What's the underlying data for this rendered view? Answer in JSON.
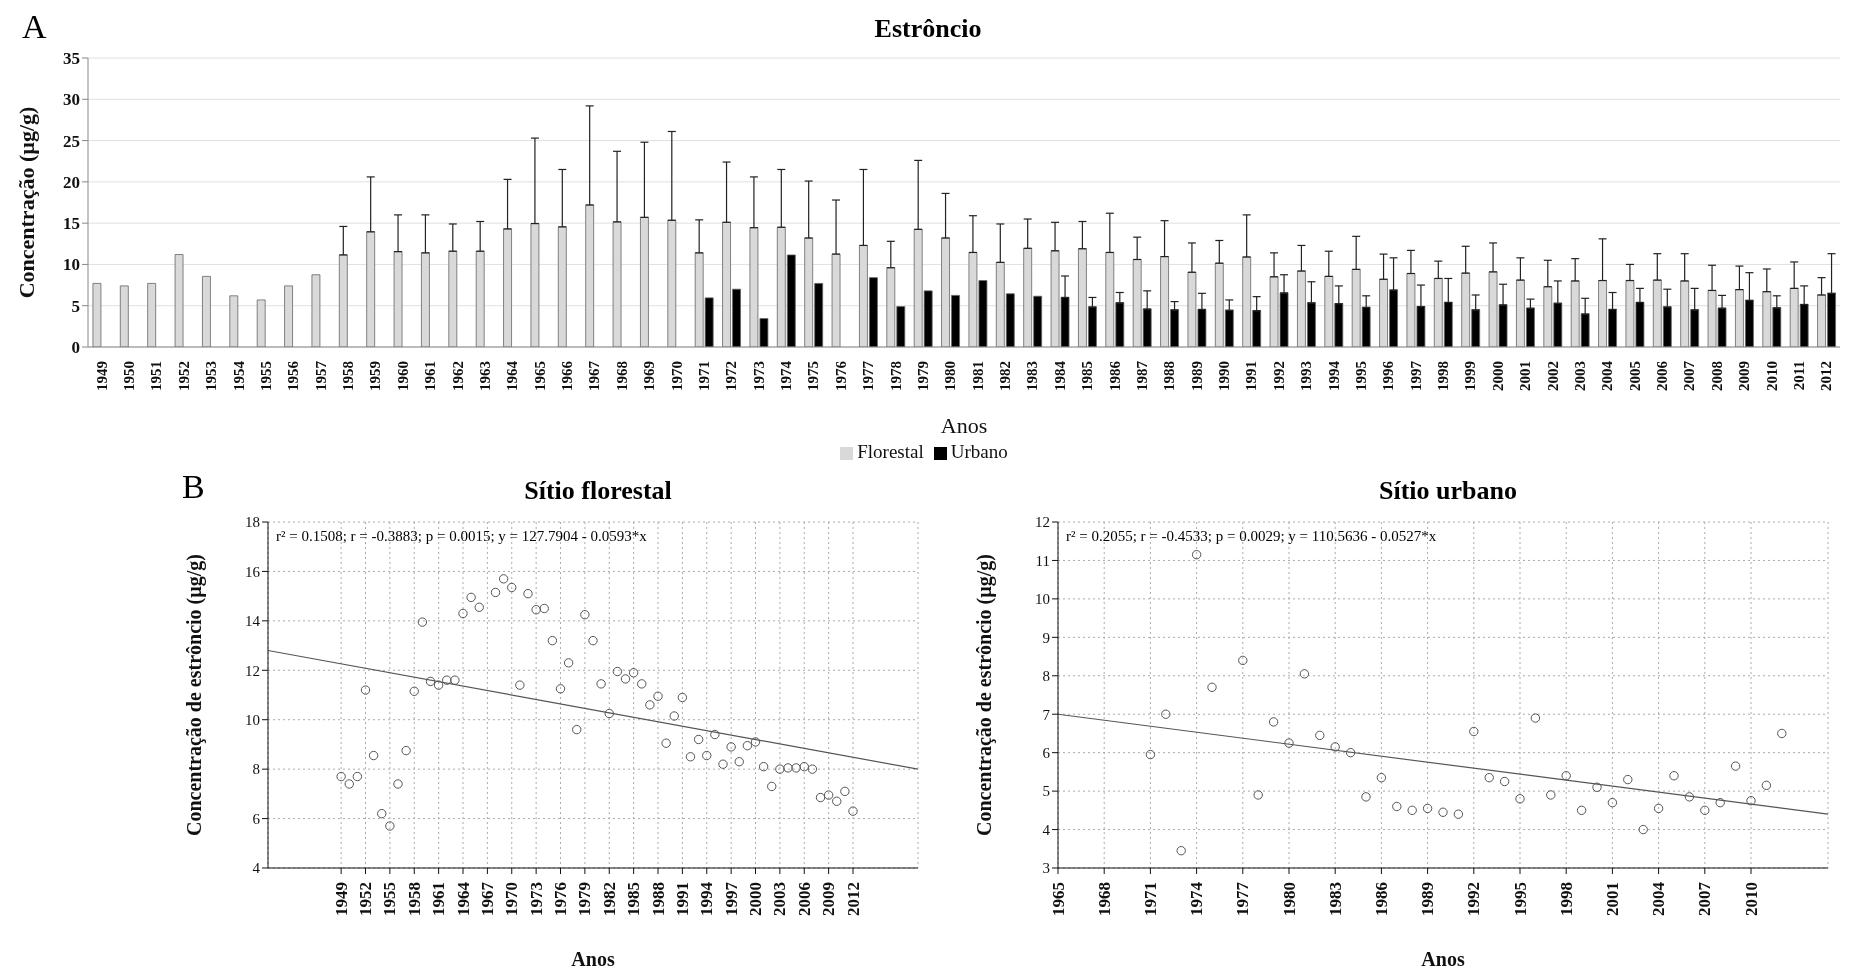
{
  "chart_data": [
    {
      "type": "bar",
      "title": "Estrôncio",
      "xlabel": "Anos",
      "ylabel": "Concentração (µg/g)",
      "annotations": [
        "A"
      ],
      "categories": [
        "1949",
        "1950",
        "1951",
        "1952",
        "1953",
        "1954",
        "1955",
        "1956",
        "1957",
        "1958",
        "1959",
        "1960",
        "1961",
        "1962",
        "1963",
        "1964",
        "1965",
        "1966",
        "1967",
        "1968",
        "1969",
        "1970",
        "1971",
        "1972",
        "1973",
        "1974",
        "1975",
        "1976",
        "1977",
        "1978",
        "1979",
        "1980",
        "1981",
        "1982",
        "1983",
        "1984",
        "1985",
        "1986",
        "1987",
        "1988",
        "1989",
        "1990",
        "1991",
        "1992",
        "1993",
        "1994",
        "1995",
        "1996",
        "1997",
        "1998",
        "1999",
        "2000",
        "2001",
        "2002",
        "2003",
        "2004",
        "2005",
        "2006",
        "2007",
        "2008",
        "2009",
        "2010",
        "2011",
        "2012"
      ],
      "series": [
        {
          "name": "Florestal",
          "color": "#d9d9d9",
          "values": [
            7.7,
            7.4,
            7.7,
            11.2,
            8.55,
            6.2,
            5.7,
            7.4,
            8.75,
            11.15,
            13.95,
            11.55,
            11.4,
            11.6,
            11.6,
            14.3,
            14.95,
            14.55,
            17.2,
            15.15,
            15.7,
            15.35,
            11.4,
            15.1,
            14.45,
            14.5,
            13.2,
            11.25,
            12.3,
            9.6,
            14.25,
            13.2,
            11.45,
            10.25,
            11.95,
            11.65,
            11.9,
            11.45,
            10.6,
            10.95,
            9.05,
            10.15,
            10.9,
            8.5,
            9.2,
            8.55,
            9.4,
            8.2,
            8.9,
            8.3,
            8.95,
            9.1,
            8.1,
            7.3,
            8.0,
            8.05,
            8.05,
            8.1,
            8.0,
            6.85,
            6.95,
            6.7,
            7.1,
            6.3
          ],
          "errors": [
            null,
            null,
            null,
            null,
            null,
            null,
            null,
            null,
            null,
            [
              11.15,
              14.6
            ],
            [
              13.95,
              20.6
            ],
            [
              11.55,
              16.0
            ],
            [
              11.4,
              16.0
            ],
            [
              11.6,
              14.9
            ],
            [
              11.6,
              15.2
            ],
            [
              14.3,
              20.3
            ],
            [
              14.95,
              25.3
            ],
            [
              14.55,
              21.5
            ],
            [
              17.2,
              29.2
            ],
            [
              15.15,
              23.7
            ],
            [
              15.7,
              24.8
            ],
            [
              15.35,
              26.1
            ],
            [
              11.4,
              15.4
            ],
            [
              15.1,
              22.4
            ],
            [
              14.45,
              20.6
            ],
            [
              14.5,
              21.5
            ],
            [
              13.2,
              20.1
            ],
            [
              11.25,
              17.8
            ],
            [
              12.3,
              21.5
            ],
            [
              9.6,
              12.8
            ],
            [
              14.25,
              22.6
            ],
            [
              13.2,
              18.6
            ],
            [
              11.45,
              15.9
            ],
            [
              10.25,
              14.9
            ],
            [
              11.95,
              15.5
            ],
            [
              11.65,
              15.1
            ],
            [
              11.9,
              15.2
            ],
            [
              11.45,
              16.2
            ],
            [
              10.6,
              13.3
            ],
            [
              10.95,
              15.3
            ],
            [
              9.05,
              12.6
            ],
            [
              10.15,
              12.9
            ],
            [
              10.9,
              16.0
            ],
            [
              8.5,
              11.4
            ],
            [
              9.2,
              12.3
            ],
            [
              8.55,
              11.6
            ],
            [
              9.4,
              13.4
            ],
            [
              8.2,
              11.25
            ],
            [
              8.9,
              11.7
            ],
            [
              8.3,
              10.4
            ],
            [
              8.95,
              12.2
            ],
            [
              9.1,
              12.6
            ],
            [
              8.1,
              10.8
            ],
            [
              7.3,
              10.5
            ],
            [
              8.0,
              10.7
            ],
            [
              8.05,
              13.1
            ],
            [
              8.05,
              10.0
            ],
            [
              8.1,
              11.3
            ],
            [
              8.0,
              11.3
            ],
            [
              6.85,
              9.9
            ],
            [
              6.95,
              9.8
            ],
            [
              6.7,
              9.45
            ],
            [
              7.1,
              10.3
            ],
            [
              6.3,
              8.4
            ]
          ]
        },
        {
          "name": "Urbano",
          "color": "#000000",
          "values": [
            null,
            null,
            null,
            null,
            null,
            null,
            null,
            null,
            null,
            null,
            null,
            null,
            null,
            null,
            null,
            null,
            null,
            null,
            null,
            null,
            null,
            null,
            5.95,
            7.0,
            3.45,
            11.15,
            7.7,
            null,
            8.4,
            4.9,
            6.8,
            6.25,
            8.05,
            6.45,
            6.15,
            6.0,
            4.85,
            5.35,
            4.6,
            4.5,
            4.55,
            4.45,
            4.4,
            6.55,
            5.35,
            5.25,
            4.8,
            6.9,
            4.9,
            5.4,
            4.5,
            5.1,
            4.7,
            5.3,
            4.0,
            4.55,
            5.4,
            4.85,
            4.5,
            4.7,
            5.65,
            4.75,
            5.15,
            6.5
          ],
          "errors": [
            null,
            null,
            null,
            null,
            null,
            null,
            null,
            null,
            null,
            null,
            null,
            null,
            null,
            null,
            null,
            null,
            null,
            null,
            null,
            null,
            null,
            null,
            null,
            null,
            null,
            null,
            null,
            null,
            null,
            null,
            null,
            null,
            null,
            null,
            null,
            [
              6.0,
              8.6
            ],
            [
              4.85,
              6.0
            ],
            [
              5.35,
              6.6
            ],
            [
              4.6,
              6.8
            ],
            [
              4.5,
              5.5
            ],
            [
              4.55,
              6.5
            ],
            [
              4.45,
              5.7
            ],
            [
              4.4,
              6.1
            ],
            [
              6.55,
              8.75
            ],
            [
              5.35,
              7.9
            ],
            [
              5.25,
              7.4
            ],
            [
              4.8,
              6.2
            ],
            [
              6.9,
              10.8
            ],
            [
              4.9,
              7.5
            ],
            [
              5.4,
              8.3
            ],
            [
              4.5,
              6.3
            ],
            [
              5.1,
              7.6
            ],
            [
              4.7,
              5.8
            ],
            [
              5.3,
              8.0
            ],
            [
              4.0,
              5.9
            ],
            [
              4.55,
              6.6
            ],
            [
              5.4,
              7.1
            ],
            [
              4.85,
              7.0
            ],
            [
              4.5,
              7.1
            ],
            [
              4.7,
              6.25
            ],
            [
              5.65,
              9.0
            ],
            [
              4.75,
              6.2
            ],
            [
              5.15,
              7.4
            ],
            [
              6.5,
              11.3
            ]
          ]
        }
      ],
      "ylim": [
        0,
        35
      ],
      "yticks": [
        0,
        5,
        10,
        15,
        20,
        25,
        30,
        35
      ],
      "grid": "y",
      "legend": "bottom"
    },
    {
      "type": "scatter",
      "title": "Sítio florestal",
      "xlabel": "Anos",
      "ylabel": "Concentração de estrôncio (µg/g)",
      "annotations": [
        "B",
        "r² = 0.1508;  r = -0.3883; p = 0.0015;  y = 127.7904 - 0.0593*x"
      ],
      "series": [
        {
          "type": "scatter",
          "marker": "circle",
          "color": "#555555",
          "x": [
            1949,
            1950,
            1951,
            1952,
            1953,
            1954,
            1955,
            1956,
            1957,
            1958,
            1959,
            1960,
            1961,
            1962,
            1963,
            1964,
            1965,
            1966,
            1968,
            1969,
            1970,
            1971,
            1972,
            1973,
            1974,
            1975,
            1976,
            1977,
            1978,
            1979,
            1980,
            1981,
            1982,
            1983,
            1984,
            1985,
            1986,
            1987,
            1988,
            1989,
            1990,
            1991,
            1992,
            1993,
            1994,
            1995,
            1996,
            1997,
            1998,
            1999,
            2000,
            2001,
            2002,
            2003,
            2004,
            2005,
            2006,
            2007,
            2008,
            2009,
            2010,
            2011,
            2012
          ],
          "values": [
            7.7,
            7.4,
            7.7,
            11.2,
            8.55,
            6.2,
            5.7,
            7.4,
            8.75,
            11.15,
            13.95,
            11.55,
            11.4,
            11.6,
            11.6,
            14.3,
            14.95,
            14.55,
            15.15,
            15.7,
            15.35,
            11.4,
            15.1,
            14.45,
            14.5,
            13.2,
            11.25,
            12.3,
            9.6,
            14.25,
            13.2,
            11.45,
            10.25,
            11.95,
            11.65,
            11.9,
            11.45,
            10.6,
            10.95,
            9.05,
            10.15,
            10.9,
            8.5,
            9.2,
            8.55,
            9.4,
            8.2,
            8.9,
            8.3,
            8.95,
            9.1,
            8.1,
            7.3,
            8.0,
            8.05,
            8.05,
            8.1,
            8.0,
            6.85,
            6.95,
            6.7,
            7.1,
            6.3
          ]
        },
        {
          "type": "line",
          "marker": "none",
          "color": "#555555",
          "x": [
            1940,
            2020
          ],
          "values": [
            12.8,
            8.0
          ]
        }
      ],
      "xlim": [
        1940,
        2020
      ],
      "xticks": [
        1949,
        1952,
        1955,
        1958,
        1961,
        1964,
        1967,
        1970,
        1973,
        1976,
        1979,
        1982,
        1985,
        1988,
        1991,
        1994,
        1997,
        2000,
        2003,
        2006,
        2009,
        2012
      ],
      "ylim": [
        4,
        18
      ],
      "yticks": [
        4,
        6,
        8,
        10,
        12,
        14,
        16,
        18
      ],
      "grid": true
    },
    {
      "type": "scatter",
      "title": "Sítio urbano",
      "xlabel": "Anos",
      "ylabel": "Concentração de estrôncio (µg/g)",
      "annotations": [
        "r² = 0.2055;  r = -0.4533; p = 0.0029;  y = 110.5636 - 0.0527*x"
      ],
      "series": [
        {
          "type": "scatter",
          "marker": "circle",
          "color": "#555555",
          "x": [
            1971,
            1972,
            1973,
            1974,
            1975,
            1977,
            1978,
            1979,
            1980,
            1981,
            1982,
            1983,
            1984,
            1985,
            1986,
            1987,
            1988,
            1989,
            1990,
            1991,
            1992,
            1993,
            1994,
            1995,
            1996,
            1997,
            1998,
            1999,
            2000,
            2001,
            2002,
            2003,
            2004,
            2005,
            2006,
            2007,
            2008,
            2009,
            2010,
            2011,
            2012
          ],
          "values": [
            5.95,
            7.0,
            3.45,
            11.15,
            7.7,
            8.4,
            4.9,
            6.8,
            6.25,
            8.05,
            6.45,
            6.15,
            6.0,
            4.85,
            5.35,
            4.6,
            4.5,
            4.55,
            4.45,
            4.4,
            6.55,
            5.35,
            5.25,
            4.8,
            6.9,
            4.9,
            5.4,
            4.5,
            5.1,
            4.7,
            5.3,
            4.0,
            4.55,
            5.4,
            4.85,
            4.5,
            4.7,
            5.65,
            4.75,
            5.15,
            6.5
          ]
        },
        {
          "type": "line",
          "marker": "none",
          "color": "#555555",
          "x": [
            1965,
            2015
          ],
          "values": [
            7.0,
            4.4
          ]
        }
      ],
      "xlim": [
        1965,
        2015
      ],
      "xticks": [
        1965,
        1968,
        1971,
        1974,
        1977,
        1980,
        1983,
        1986,
        1989,
        1992,
        1995,
        1998,
        2001,
        2004,
        2007,
        2010
      ],
      "ylim": [
        3,
        12
      ],
      "yticks": [
        3,
        4,
        5,
        6,
        7,
        8,
        9,
        10,
        11,
        12
      ],
      "grid": true
    }
  ]
}
